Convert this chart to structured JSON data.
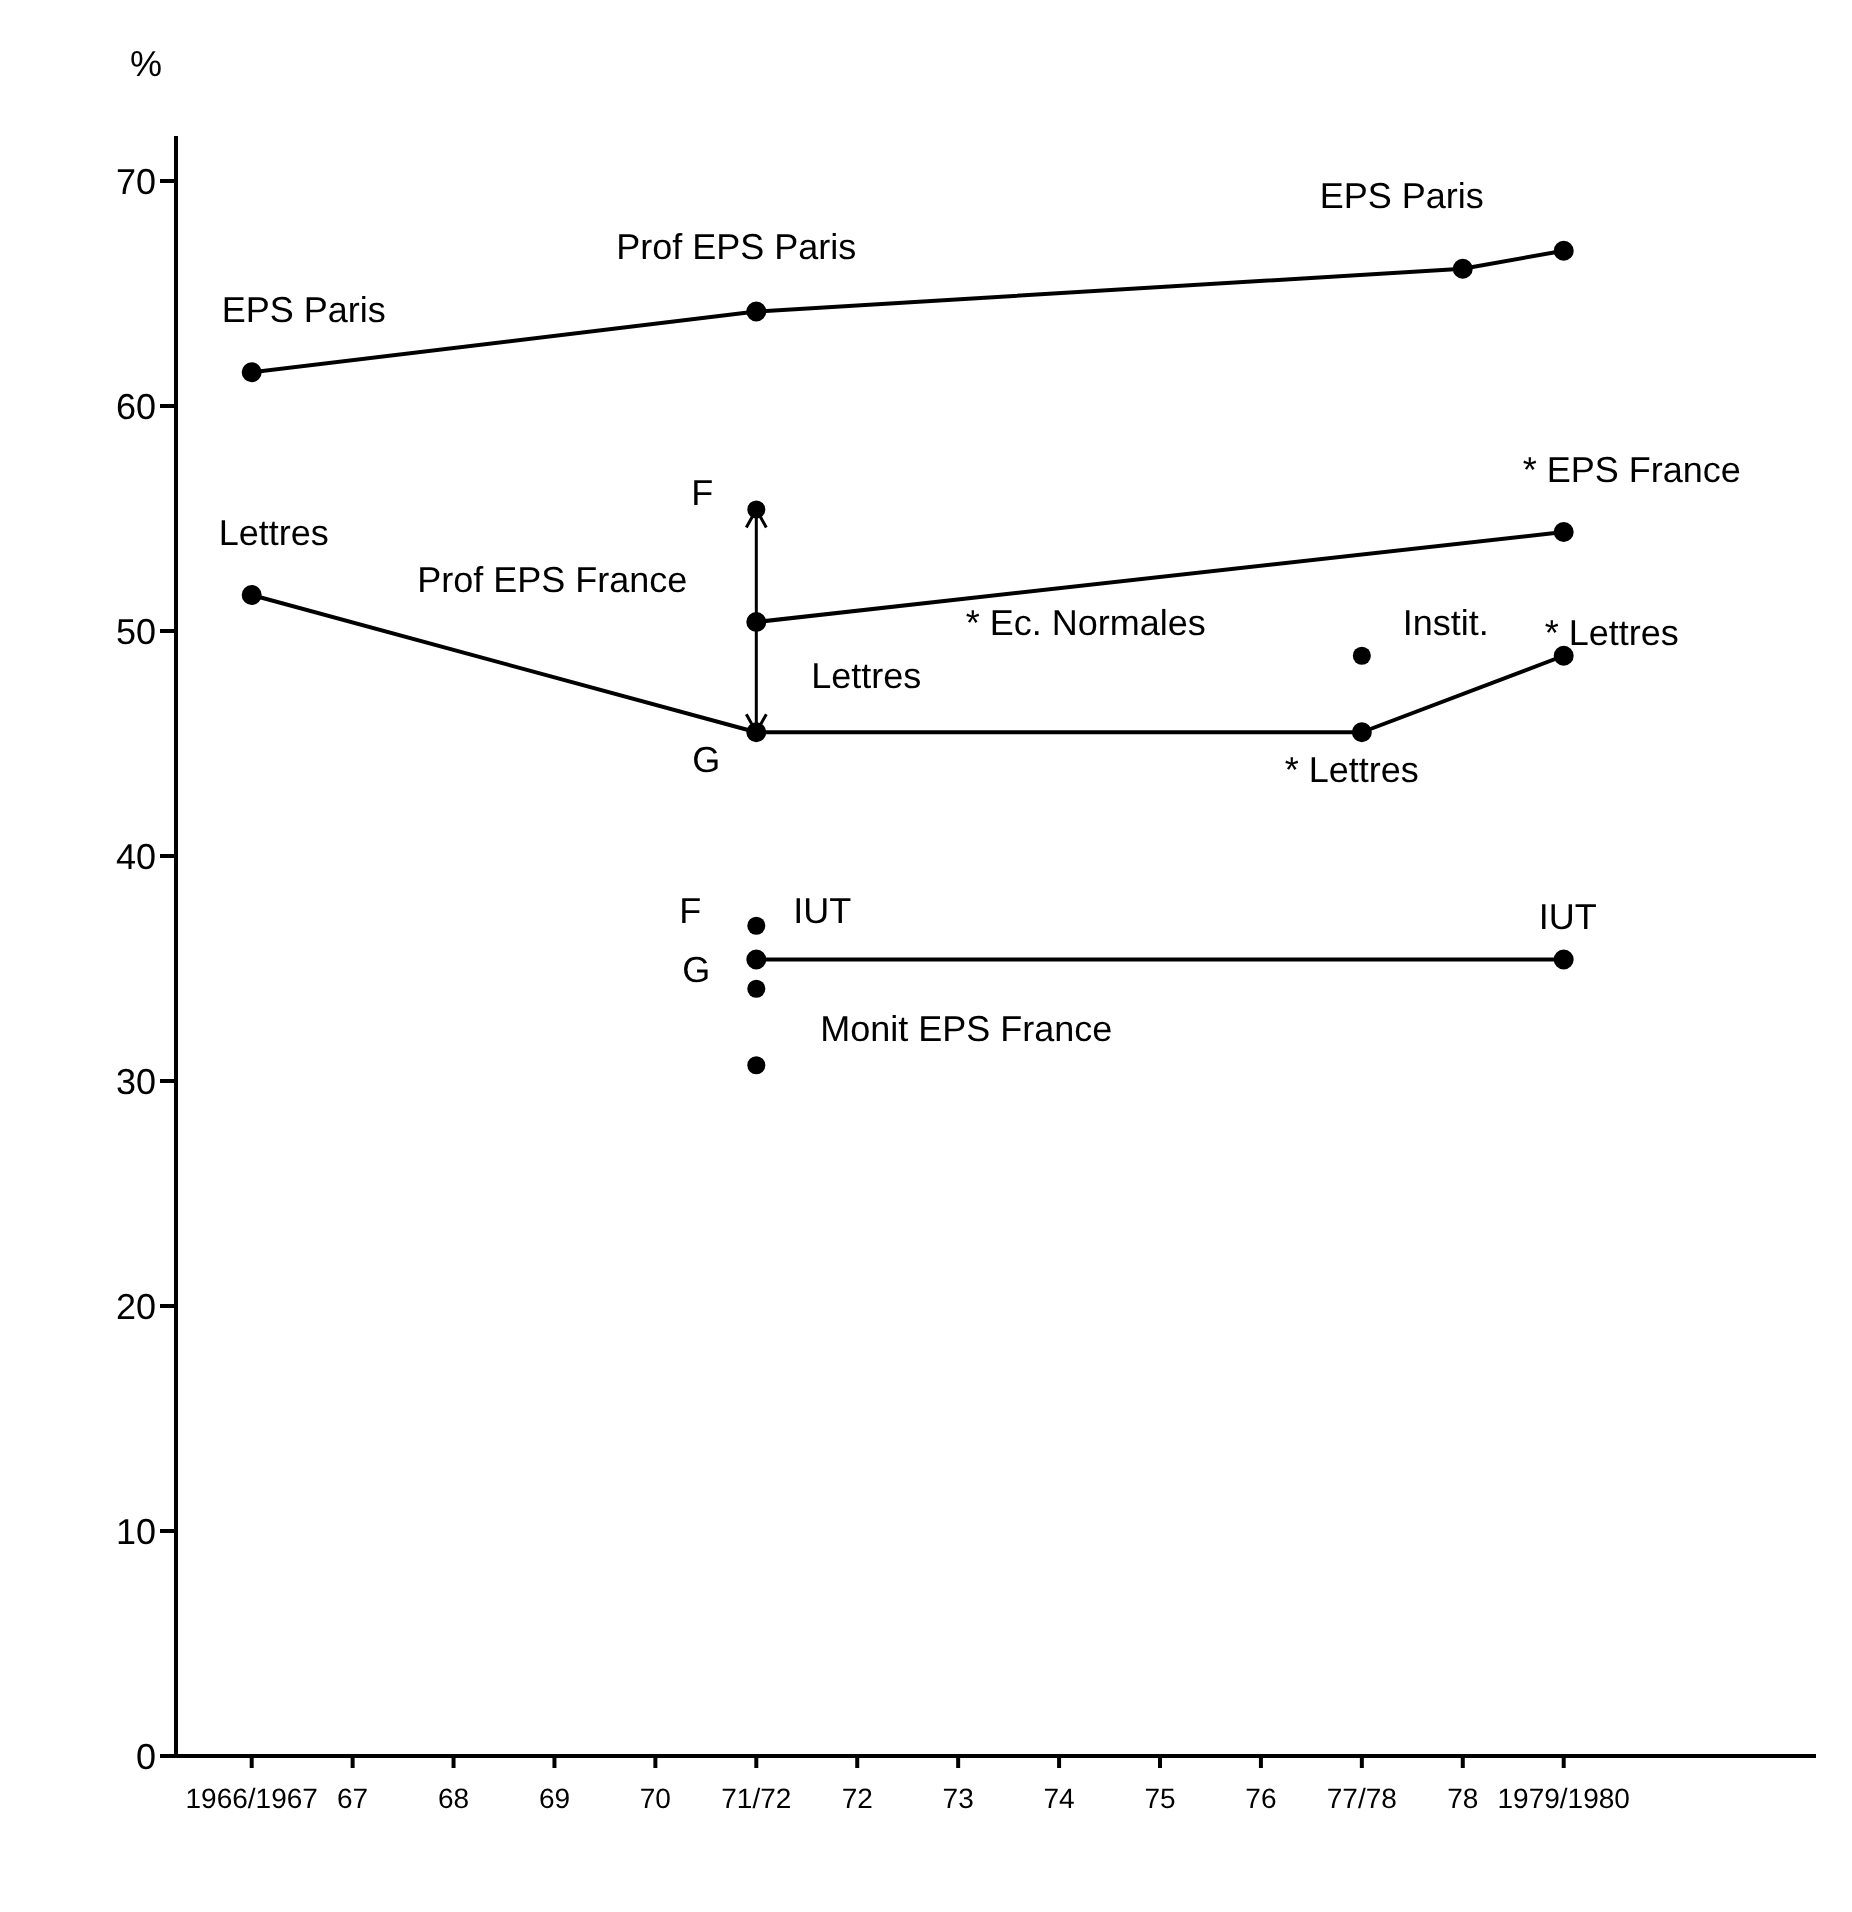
{
  "chart_data": {
    "type": "line",
    "ylabel": "%",
    "xlim": [
      1965.25,
      1981.5
    ],
    "xticks": [
      {
        "value": 1966,
        "label": "1966/1967"
      },
      {
        "value": 1967,
        "label": "67"
      },
      {
        "value": 1968,
        "label": "68"
      },
      {
        "value": 1969,
        "label": "69"
      },
      {
        "value": 1970,
        "label": "70"
      },
      {
        "value": 1971,
        "label": "71/72"
      },
      {
        "value": 1972,
        "label": "72"
      },
      {
        "value": 1973,
        "label": "73"
      },
      {
        "value": 1974,
        "label": "74"
      },
      {
        "value": 1975,
        "label": "75"
      },
      {
        "value": 1976,
        "label": "76"
      },
      {
        "value": 1977,
        "label": "77/78"
      },
      {
        "value": 1978,
        "label": "78"
      },
      {
        "value": 1979,
        "label": "1979/1980"
      }
    ],
    "ylim": [
      0,
      72
    ],
    "yticks": [
      0,
      10,
      20,
      30,
      40,
      50,
      60,
      70
    ],
    "marker": "circle",
    "series": [
      {
        "color": "#000000",
        "x": [
          1966,
          1971,
          1978,
          1979
        ],
        "values": [
          61.5,
          64.2,
          66.1,
          66.9
        ]
      },
      {
        "color": "#000000",
        "x": [
          1966,
          1971,
          1977,
          1979
        ],
        "values": [
          51.6,
          45.5,
          45.5,
          48.9
        ]
      },
      {
        "color": "#000000",
        "x": [
          1971,
          1979
        ],
        "values": [
          50.4,
          54.4
        ]
      },
      {
        "color": "#000000",
        "x": [
          1971,
          1979
        ],
        "values": [
          35.4,
          35.4
        ]
      },
      {
        "type": "scatter",
        "color": "#000000",
        "x": [
          1971,
          1971
        ],
        "values": [
          55.4,
          45.5
        ]
      },
      {
        "type": "scatter",
        "color": "#000000",
        "x": [
          1977,
          1971,
          1971,
          1971
        ],
        "values": [
          48.9,
          36.9,
          34.1,
          30.7
        ]
      }
    ],
    "annotations": [
      {
        "text": "EPS Paris",
        "x": 1966,
        "y": 61.5
      },
      {
        "text": "Prof EPS Paris",
        "x": 1971,
        "y": 64.2
      },
      {
        "text": "EPS Paris",
        "x": 1979,
        "y": 66.9
      },
      {
        "text": "Lettres",
        "x": 1966,
        "y": 51.6
      },
      {
        "text": "Prof EPS France",
        "x": 1971,
        "y": 50.4
      },
      {
        "text": "F",
        "x": 1971,
        "y": 55.4
      },
      {
        "text": "G",
        "x": 1971,
        "y": 45.5
      },
      {
        "text": "Lettres",
        "x": 1971,
        "y": 45.5
      },
      "* Ec. Normales",
      {
        "text": "Instit.",
        "x": 1977,
        "y": 48.9
      },
      {
        "text": "* Lettres",
        "x": 1979,
        "y": 48.9
      },
      {
        "text": "* EPS France",
        "x": 1979,
        "y": 54.4
      },
      {
        "text": "* Lettres",
        "x": 1977,
        "y": 45.5
      },
      {
        "text": "F",
        "x": 1971,
        "y": 36.9
      },
      {
        "text": "IUT",
        "x": 1971,
        "y": 35.4
      },
      {
        "text": "G",
        "x": 1971,
        "y": 34.1
      },
      {
        "text": "Monit EPS France",
        "x": 1971,
        "y": 30.7
      },
      {
        "text": "IUT",
        "x": 1979,
        "y": 35.4
      }
    ]
  }
}
